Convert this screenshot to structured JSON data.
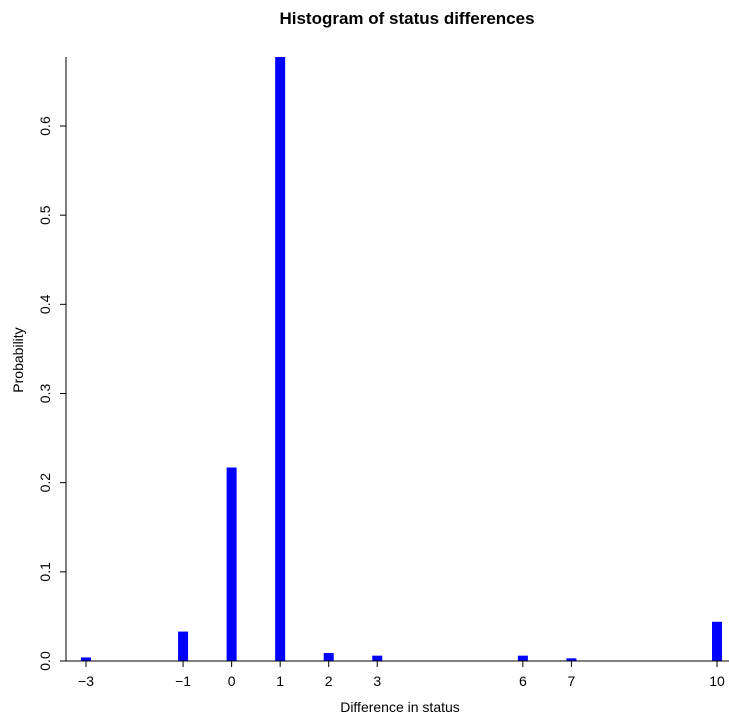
{
  "chart_data": {
    "type": "bar",
    "title": "Histogram of status differences",
    "xlabel": "Difference in status",
    "ylabel": "Probability",
    "x_ticks": [
      -3,
      -1,
      0,
      1,
      2,
      3,
      6,
      7,
      10
    ],
    "x_tick_labels": [
      "−3",
      "−1",
      "0",
      "1",
      "2",
      "3",
      "6",
      "7",
      "10"
    ],
    "y_ticks": [
      0.0,
      0.1,
      0.2,
      0.3,
      0.4,
      0.5,
      0.6
    ],
    "y_tick_labels": [
      "0.0",
      "0.1",
      "0.2",
      "0.3",
      "0.4",
      "0.5",
      "0.6"
    ],
    "xlim": [
      -3.3,
      10.3
    ],
    "ylim": [
      0,
      0.68
    ],
    "x": [
      -3,
      -1,
      0,
      1,
      2,
      3,
      6,
      7,
      10
    ],
    "values": [
      0.004,
      0.033,
      0.217,
      0.68,
      0.009,
      0.006,
      0.006,
      0.003,
      0.044
    ],
    "bar_color": "#0000ff",
    "grid": false,
    "legend": "none"
  }
}
